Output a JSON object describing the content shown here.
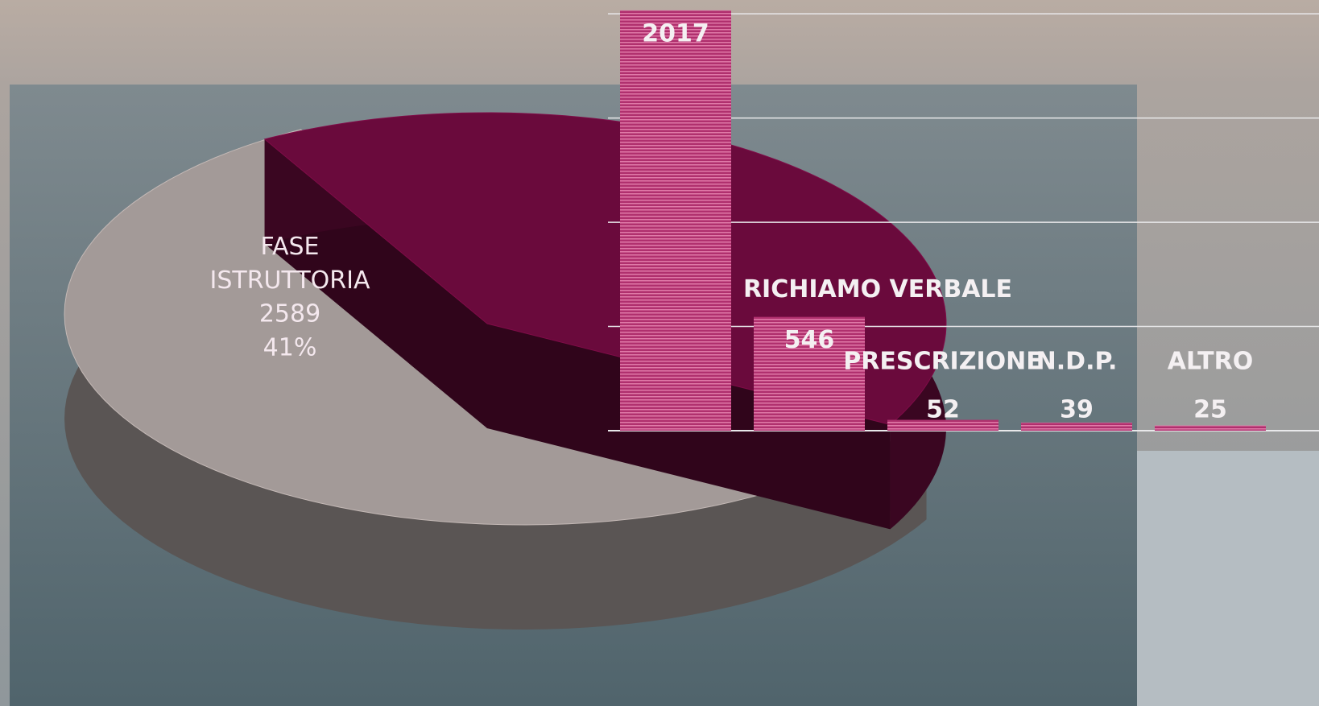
{
  "chart_data": [
    {
      "type": "pie",
      "categories": [
        "FASE ISTRUTTORIA",
        null
      ],
      "values": [
        41,
        59
      ],
      "value_labels": [
        "41%",
        null
      ],
      "counts": [
        2589,
        null
      ],
      "colors": [
        "#6a0a3c",
        "#a39a98"
      ]
    },
    {
      "type": "bar",
      "categories": [
        null,
        "RICHIAMO VERBALE",
        "PRESCRIZIONE",
        "N.D.P.",
        "ALTRO"
      ],
      "values": [
        2017,
        546,
        52,
        39,
        25
      ],
      "color": "#b0306e",
      "ylim": [
        0,
        2020
      ],
      "yticks": [
        0,
        500,
        1000,
        1500,
        2000
      ],
      "grid": true
    }
  ]
}
